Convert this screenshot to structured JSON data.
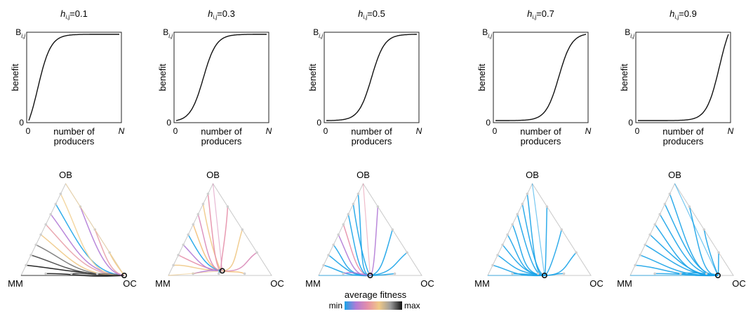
{
  "chart_data": {
    "type": "line",
    "panels": [
      {
        "h_value": "0.1",
        "h_symbol": "h",
        "h_subscript": "i,j",
        "ylabel": "benefit",
        "xlabel_line1": "number of",
        "xlabel_line2": "producers",
        "ymax_label": "B",
        "ymax_subscript": "i,j",
        "y0_label": "0",
        "x0_label": "0",
        "xmax_label": "N",
        "curve_midpoint": 0.1,
        "curve_steepness": 14,
        "simplex": {
          "labels": {
            "top": "OB",
            "left": "MM",
            "right": "OC"
          },
          "equilibrium": [
            0.0,
            0.0,
            1.0
          ],
          "palette": "mixed-dark"
        }
      },
      {
        "h_value": "0.3",
        "h_symbol": "h",
        "h_subscript": "i,j",
        "ylabel": "benefit",
        "xlabel_line1": "number of",
        "xlabel_line2": "producers",
        "ymax_label": "B",
        "ymax_subscript": "i,j",
        "y0_label": "0",
        "x0_label": "0",
        "xmax_label": "N",
        "curve_midpoint": 0.3,
        "curve_steepness": 14,
        "simplex": {
          "labels": {
            "top": "OB",
            "left": "MM",
            "right": "OC"
          },
          "equilibrium": [
            0.05,
            0.45,
            0.5
          ],
          "palette": "mixed-warm"
        }
      },
      {
        "h_value": "0.5",
        "h_symbol": "h",
        "h_subscript": "i,j",
        "ylabel": "benefit",
        "xlabel_line1": "number of",
        "xlabel_line2": "producers",
        "ymax_label": "B",
        "ymax_subscript": "i,j",
        "y0_label": "0",
        "x0_label": "0",
        "xmax_label": "N",
        "curve_midpoint": 0.5,
        "curve_steepness": 14,
        "simplex": {
          "labels": {
            "top": "OB",
            "left": "MM",
            "right": "OC"
          },
          "equilibrium": [
            0.0,
            0.5,
            0.5
          ],
          "palette": "mixed-cool"
        }
      },
      {
        "h_value": "0.7",
        "h_symbol": "h",
        "h_subscript": "i,j",
        "ylabel": "benefit",
        "xlabel_line1": "number of",
        "xlabel_line2": "producers",
        "ymax_label": "B",
        "ymax_subscript": "i,j",
        "y0_label": "0",
        "x0_label": "0",
        "xmax_label": "N",
        "curve_midpoint": 0.7,
        "curve_steepness": 14,
        "simplex": {
          "labels": {
            "top": "OB",
            "left": "MM",
            "right": "OC"
          },
          "equilibrium": [
            0.0,
            0.45,
            0.55
          ],
          "palette": "cyan"
        }
      },
      {
        "h_value": "0.9",
        "h_symbol": "h",
        "h_subscript": "i,j",
        "ylabel": "benefit",
        "xlabel_line1": "number of",
        "xlabel_line2": "producers",
        "ymax_label": "B",
        "ymax_subscript": "i,j",
        "y0_label": "0",
        "x0_label": "0",
        "xmax_label": "N",
        "curve_midpoint": 0.9,
        "curve_steepness": 14,
        "simplex": {
          "labels": {
            "top": "OB",
            "left": "MM",
            "right": "OC"
          },
          "equilibrium": [
            0.0,
            0.15,
            0.85
          ],
          "palette": "cyan"
        }
      }
    ],
    "legend": {
      "title": "average fitness",
      "min_label": "min",
      "max_label": "max",
      "colors": [
        "#1aa3e8",
        "#b27bd6",
        "#e58fa8",
        "#f0c987",
        "#9a9a9a",
        "#111111"
      ],
      "placement": "bottom-center"
    }
  }
}
